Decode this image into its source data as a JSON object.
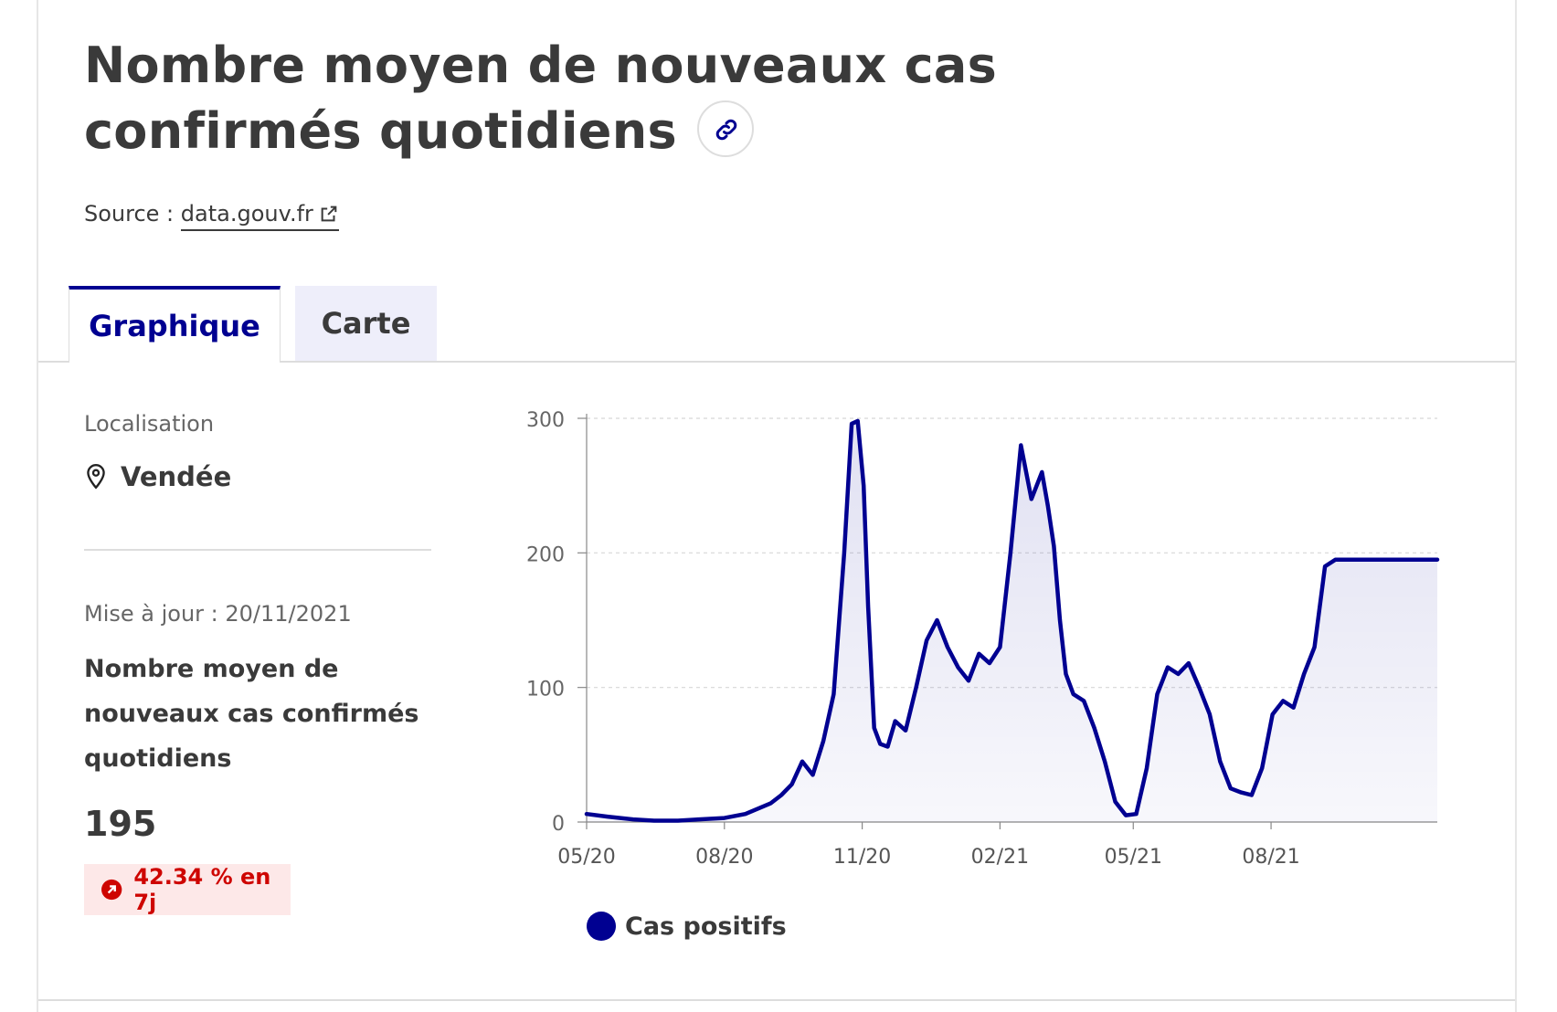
{
  "header": {
    "title": "Nombre moyen de nouveaux cas confirmés quotidiens",
    "source_prefix": "Source :",
    "source_link": "data.gouv.fr"
  },
  "tabs": [
    {
      "label": "Graphique",
      "active": true
    },
    {
      "label": "Carte",
      "active": false
    }
  ],
  "sidebar": {
    "location_label": "Localisation",
    "location_value": "Vendée",
    "update_text": "Mise à jour : 20/11/2021",
    "metric_name": "Nombre moyen de nouveaux cas confirmés quotidiens",
    "metric_value": "195",
    "trend_text": "42.34 % en 7j"
  },
  "colors": {
    "accent": "#000091",
    "trend": "#ce0500",
    "trend_bg": "#fde8e8"
  },
  "chart_data": {
    "type": "area",
    "x_unit": "month",
    "x_ticks": [
      "05/20",
      "08/20",
      "11/20",
      "02/21",
      "05/21",
      "08/21"
    ],
    "y_ticks": [
      "0",
      "100",
      "200",
      "300"
    ],
    "ylim": [
      0,
      300
    ],
    "grid": true,
    "legend_position": "bottom-left",
    "series": [
      {
        "name": "Cas positifs",
        "color": "#000091",
        "x": [
          "2020-05-01",
          "2020-05-15",
          "2020-06-01",
          "2020-06-15",
          "2020-07-01",
          "2020-07-15",
          "2020-08-01",
          "2020-08-15",
          "2020-09-01",
          "2020-09-08",
          "2020-09-15",
          "2020-09-22",
          "2020-09-29",
          "2020-10-06",
          "2020-10-13",
          "2020-10-20",
          "2020-10-25",
          "2020-10-29",
          "2020-11-02",
          "2020-11-05",
          "2020-11-09",
          "2020-11-13",
          "2020-11-18",
          "2020-11-23",
          "2020-11-30",
          "2020-12-07",
          "2020-12-14",
          "2020-12-21",
          "2020-12-28",
          "2021-01-04",
          "2021-01-11",
          "2021-01-18",
          "2021-01-25",
          "2021-02-01",
          "2021-02-08",
          "2021-02-15",
          "2021-02-22",
          "2021-03-01",
          "2021-03-05",
          "2021-03-09",
          "2021-03-13",
          "2021-03-17",
          "2021-03-22",
          "2021-03-29",
          "2021-04-05",
          "2021-04-12",
          "2021-04-19",
          "2021-04-26",
          "2021-05-03",
          "2021-05-10",
          "2021-05-17",
          "2021-05-24",
          "2021-05-31",
          "2021-06-07",
          "2021-06-14",
          "2021-06-21",
          "2021-06-28",
          "2021-07-05",
          "2021-07-12",
          "2021-07-19",
          "2021-07-26",
          "2021-08-02",
          "2021-08-09",
          "2021-08-16",
          "2021-08-23",
          "2021-08-30",
          "2021-09-06",
          "2021-09-13",
          "2021-09-20",
          "2021-09-27",
          "2021-10-04",
          "2021-10-11",
          "2021-10-18",
          "2021-10-25",
          "2021-11-01",
          "2021-11-08",
          "2021-11-15",
          "2021-11-20"
        ],
        "values": [
          6,
          4,
          2,
          1,
          1,
          2,
          3,
          6,
          14,
          20,
          28,
          45,
          35,
          60,
          95,
          200,
          296,
          298,
          250,
          160,
          70,
          58,
          56,
          75,
          68,
          100,
          135,
          150,
          130,
          115,
          105,
          125,
          118,
          130,
          200,
          280,
          240,
          260,
          235,
          205,
          150,
          110,
          95,
          90,
          70,
          45,
          15,
          5,
          6,
          40,
          95,
          115,
          110,
          118,
          100,
          80,
          45,
          25,
          22,
          20,
          40,
          80,
          90,
          85,
          110,
          130,
          190,
          195,
          195,
          195,
          195,
          195,
          195,
          195,
          195,
          195,
          195,
          195
        ]
      }
    ]
  }
}
